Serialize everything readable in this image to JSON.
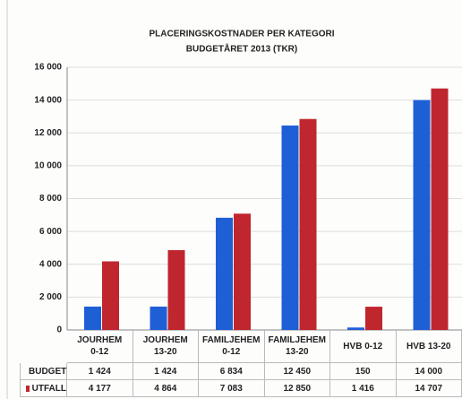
{
  "chart_data": {
    "type": "bar",
    "title": "PLACERINGSKOSTNADER PER KATEGORI",
    "subtitle": "BUDGETÅRET 2013 (TKR)",
    "categories": [
      "JOURHEM 0-12",
      "JOURHEM 13-20",
      "FAMILJEHEM 0-12",
      "FAMILJEHEM 13-20",
      "HVB 0-12",
      "HVB 13-20"
    ],
    "series": [
      {
        "name": "BUDGET",
        "color": "#1f5fd6",
        "values": [
          1424,
          1424,
          6834,
          12450,
          150,
          14000
        ],
        "value_labels": [
          "1 424",
          "1 424",
          "6 834",
          "12 450",
          "150",
          "14 000"
        ]
      },
      {
        "name": "UTFALL",
        "color": "#c0262e",
        "values": [
          4177,
          4864,
          7083,
          12850,
          1416,
          14707
        ],
        "value_labels": [
          "4 177",
          "4 864",
          "7 083",
          "12 850",
          "1 416",
          "14 707"
        ]
      }
    ],
    "ylim": [
      0,
      16000
    ],
    "yticks": [
      0,
      {
        "value": 2000,
        "label": "2 000"
      },
      {
        "value": 4000,
        "label": "4 000"
      },
      {
        "value": 6000,
        "label": "6 000"
      },
      {
        "value": 8000,
        "label": "8 000"
      },
      {
        "value": 10000,
        "label": "10 000"
      },
      {
        "value": 12000,
        "label": "12 000"
      },
      {
        "value": 14000,
        "label": "14 000"
      },
      {
        "value": 16000,
        "label": "16 000"
      }
    ],
    "grid": true
  }
}
